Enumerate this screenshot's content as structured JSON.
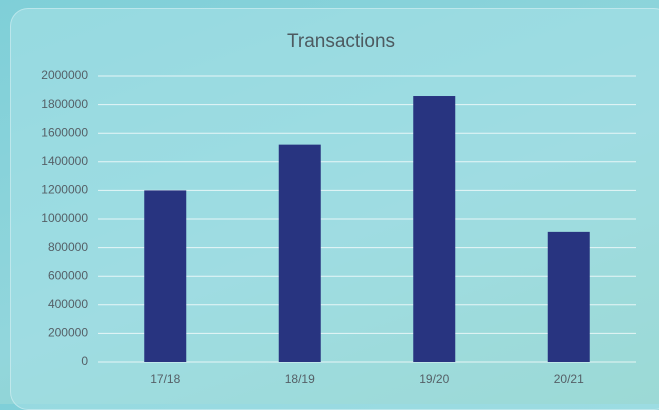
{
  "chart_data": {
    "type": "bar",
    "title": "Transactions",
    "categories": [
      "17/18",
      "18/19",
      "19/20",
      "20/21"
    ],
    "values": [
      1200000,
      1520000,
      1860000,
      910000
    ],
    "color": "#283480",
    "ylim": [
      0,
      2000000
    ],
    "yticks": [
      0,
      200000,
      400000,
      600000,
      800000,
      1000000,
      1200000,
      1400000,
      1600000,
      1800000,
      2000000
    ],
    "grid": true
  }
}
